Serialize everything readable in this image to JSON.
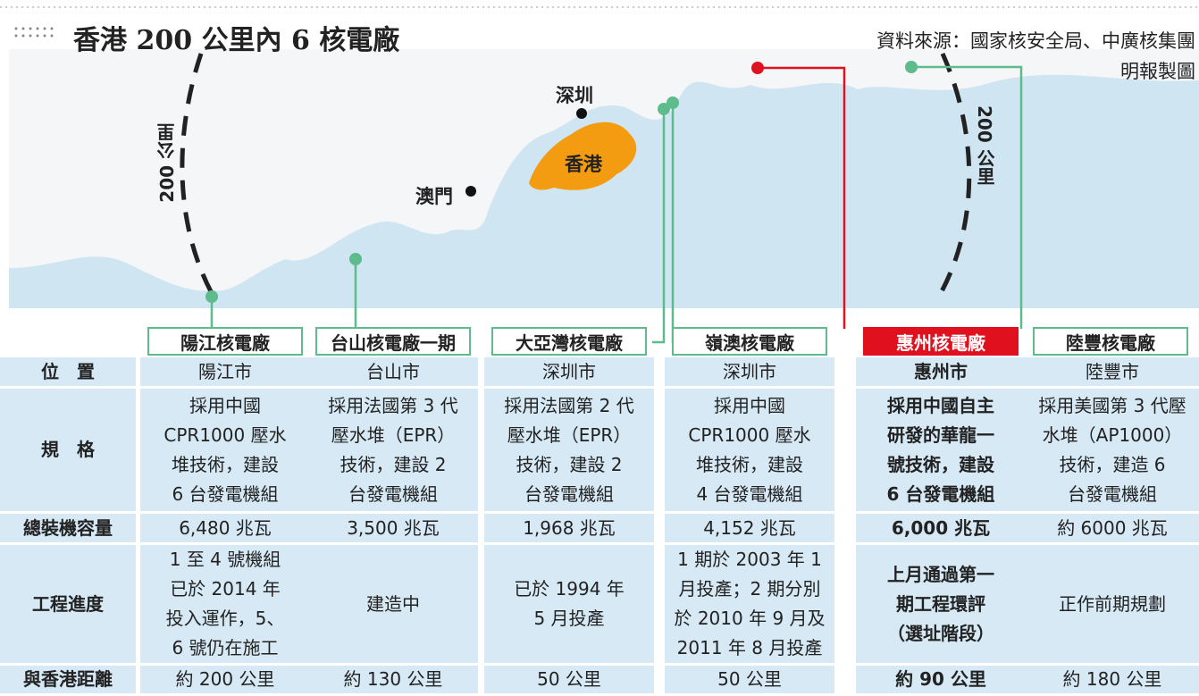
{
  "header": {
    "title": "香港 200 公里內 6 核電廠",
    "source": "資料來源：國家核安全局、中廣核集團",
    "credit": "明報製圖"
  },
  "map": {
    "labels": [
      "深圳",
      "香港",
      "澳門"
    ],
    "radius_label": "200 公里"
  },
  "table": {
    "row_labels": [
      "位　置",
      "規　格",
      "總裝機容量",
      "工程進度",
      "與香港距離"
    ],
    "plants": [
      {
        "name": "陽江核電廠",
        "color": "#5dbb8c",
        "location": "陽江市",
        "spec": [
          "採用中國",
          "CPR1000 壓水",
          "堆技術，建設",
          "6 台發電機組"
        ],
        "capacity": "6,480 兆瓦",
        "progress": [
          "1 至 4 號機組",
          "已於 2014 年",
          "投入運作，5、",
          "6 號仍在施工"
        ],
        "distance": "約 200 公里"
      },
      {
        "name": "台山核電廠一期",
        "color": "#5dbb8c",
        "location": "台山市",
        "spec": [
          "採用法國第 3 代",
          "壓水堆（EPR）",
          "技術，建設 2",
          "台發電機組"
        ],
        "capacity": "3,500 兆瓦",
        "progress": [
          "建造中"
        ],
        "distance": "約 130 公里"
      },
      {
        "name": "大亞灣核電廠",
        "color": "#5dbb8c",
        "location": "深圳市",
        "spec": [
          "採用法國第 2 代",
          "壓水堆（EPR）",
          "技術，建設 2",
          "台發電機組"
        ],
        "capacity": "1,968 兆瓦",
        "progress": [
          "已於 1994 年",
          "5 月投產"
        ],
        "distance": "50 公里"
      },
      {
        "name": "嶺澳核電廠",
        "color": "#5dbb8c",
        "location": "深圳市",
        "spec": [
          "採用中國",
          "CPR1000 壓水",
          "堆技術，建設",
          "4 台發電機組"
        ],
        "capacity": "4,152 兆瓦",
        "progress": [
          "1 期於 2003 年 1",
          "月投產；2 期分別",
          "於 2010 年 9 月及",
          "2011 年 8 月投產"
        ],
        "distance": "50 公里"
      },
      {
        "name": "惠州核電廠",
        "color": "#e0101e",
        "location": "惠州市",
        "spec": [
          "採用中國自主",
          "研發的華龍一",
          "號技術，建設",
          "6 台發電機組"
        ],
        "capacity": "6,000 兆瓦",
        "progress": [
          "上月通過第一",
          "期工程環評",
          "（選址階段）"
        ],
        "distance": "約 90 公里"
      },
      {
        "name": "陸豐核電廠",
        "color": "#5dbb8c",
        "location": "陸豐市",
        "spec": [
          "採用美國第 3 代壓",
          "水堆（AP1000）",
          "技術，建造 6",
          "台發電機組"
        ],
        "capacity": "約 6000 兆瓦",
        "progress": [
          "正作前期規劃"
        ],
        "distance": "約 180 公里"
      }
    ]
  }
}
